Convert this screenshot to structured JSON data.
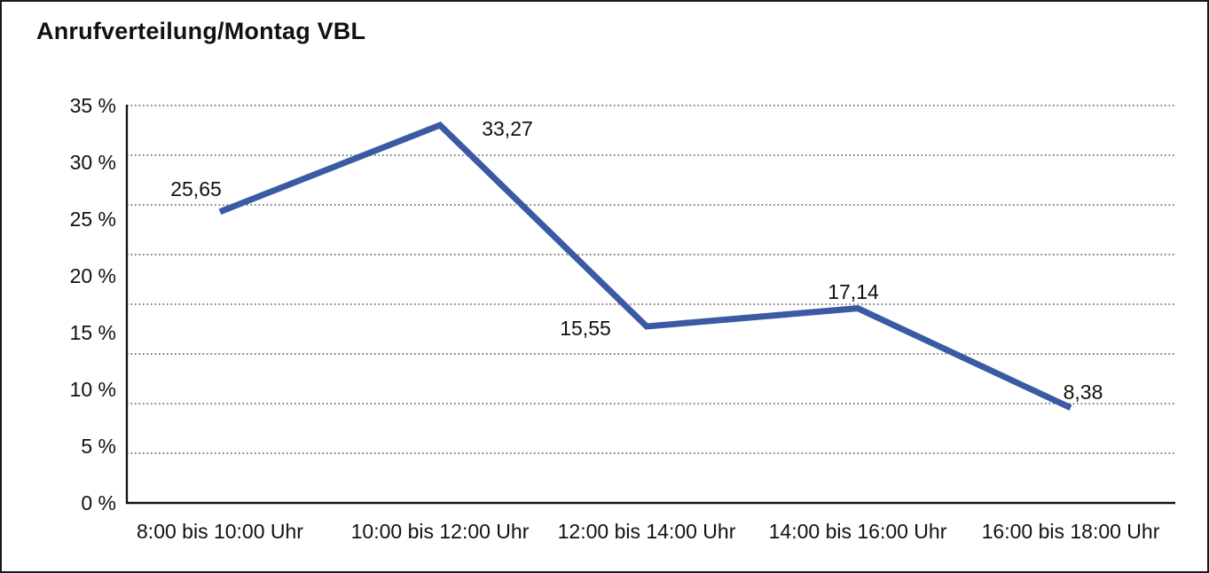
{
  "title": "Anrufverteilung/Montag VBL",
  "colors": {
    "line": "#3A5AA3",
    "grid": "#555555",
    "axis": "#111111",
    "text": "#111111",
    "background": "#ffffff",
    "frame_border": "#1a1a1a"
  },
  "chart_data": {
    "type": "line",
    "title": "Anrufverteilung/Montag VBL",
    "categories": [
      "8:00 bis 10:00 Uhr",
      "10:00 bis 12:00 Uhr",
      "12:00 bis 14:00 Uhr",
      "14:00 bis 16:00 Uhr",
      "16:00 bis 18:00 Uhr"
    ],
    "values": [
      25.65,
      33.27,
      15.55,
      17.14,
      8.38
    ],
    "data_labels": [
      "25,65",
      "33,27",
      "15,55",
      "17,14",
      "8,38"
    ],
    "y_ticks": [
      "35 %",
      "30 %",
      "25 %",
      "20 %",
      "15 %",
      "10 %",
      "5 %",
      "0 %"
    ],
    "y_tick_values": [
      35,
      30,
      25,
      20,
      15,
      10,
      5,
      0
    ],
    "ylim": [
      0,
      35
    ],
    "xlabel": "",
    "ylabel": "",
    "grid": "horizontal-dotted",
    "legend": "none",
    "series_color": "#3A5AA3"
  }
}
